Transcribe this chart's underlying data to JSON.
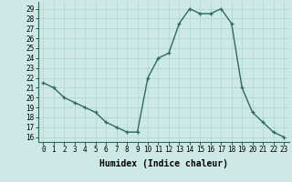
{
  "x": [
    0,
    1,
    2,
    3,
    4,
    5,
    6,
    7,
    8,
    9,
    10,
    11,
    12,
    13,
    14,
    15,
    16,
    17,
    18,
    19,
    20,
    21,
    22,
    23
  ],
  "y": [
    21.5,
    21.0,
    20.0,
    19.5,
    19.0,
    18.5,
    17.5,
    17.0,
    16.5,
    16.5,
    22.0,
    24.0,
    24.5,
    27.5,
    29.0,
    28.5,
    28.5,
    29.0,
    27.5,
    21.0,
    18.5,
    17.5,
    16.5,
    16.0
  ],
  "line_color": "#2e6b5e",
  "marker": "+",
  "marker_size": 3,
  "line_width": 1.0,
  "bg_color": "#cce9e5",
  "grid_color": "#aed4cf",
  "xlabel": "Humidex (Indice chaleur)",
  "xlabel_fontsize": 7,
  "yticks": [
    16,
    17,
    18,
    19,
    20,
    21,
    22,
    23,
    24,
    25,
    26,
    27,
    28,
    29
  ],
  "xlim": [
    -0.5,
    23.5
  ],
  "ylim": [
    15.5,
    29.7
  ],
  "tick_fontsize": 5.5
}
